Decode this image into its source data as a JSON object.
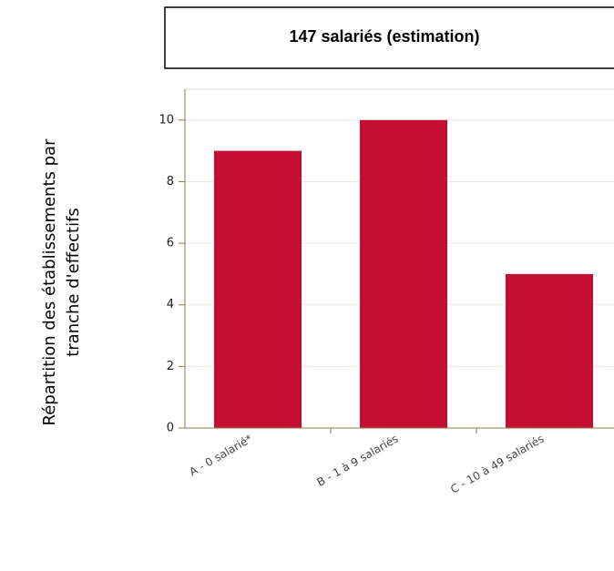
{
  "chart_data": {
    "type": "bar",
    "title": "147 salariés (estimation)",
    "ylabel": [
      "Répartition des établissements par",
      "tranche d'effectifs"
    ],
    "categories": [
      "A - 0 salarié*",
      "B - 1 à 9 salariés",
      "C - 10 à 49 salariés"
    ],
    "values": [
      9,
      10,
      5
    ],
    "color": "#c50f32",
    "ylim": [
      0,
      11
    ],
    "yticks": [
      0,
      2,
      4,
      6,
      8,
      10
    ],
    "grid": true
  }
}
